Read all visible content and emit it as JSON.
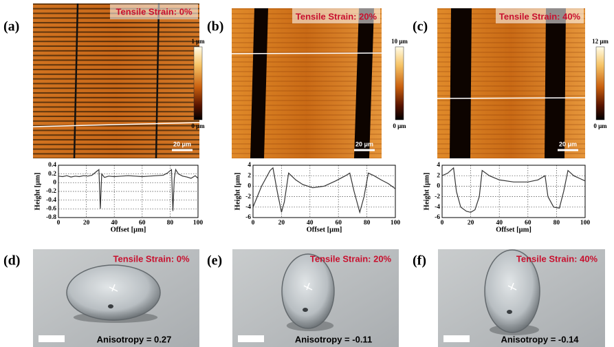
{
  "chart_data": [
    {
      "type": "line",
      "xlabel": "Offset [μm]",
      "ylabel": "Height [μm]",
      "x": [
        0,
        3,
        6,
        9,
        12,
        15,
        18,
        21,
        24,
        27,
        29,
        30,
        31,
        33,
        36,
        40,
        45,
        50,
        55,
        60,
        65,
        70,
        75,
        78,
        81,
        82,
        83,
        84,
        86,
        89,
        92,
        95,
        98,
        100
      ],
      "series": [
        {
          "color": "#333333",
          "values": [
            0.15,
            0.14,
            0.16,
            0.13,
            0.15,
            0.14,
            0.16,
            0.15,
            0.17,
            0.25,
            0.3,
            -0.6,
            0.2,
            0.12,
            0.15,
            0.14,
            0.15,
            0.16,
            0.15,
            0.14,
            0.15,
            0.16,
            0.17,
            0.22,
            0.3,
            -0.65,
            0.1,
            0.3,
            0.2,
            0.15,
            0.13,
            0.1,
            0.16,
            0.1
          ]
        }
      ],
      "xlim": [
        0,
        100
      ],
      "ylim": [
        -0.8,
        0.4
      ],
      "xticks": [
        0,
        20,
        40,
        60,
        80,
        100
      ],
      "yticks": [
        -0.8,
        -0.6,
        -0.4,
        -0.2,
        0,
        0.2,
        0.4
      ],
      "grid": true
    },
    {
      "type": "line",
      "xlabel": "Offset [μm]",
      "ylabel": "Height [μm]",
      "x": [
        0,
        3,
        6,
        9,
        12,
        14,
        17,
        20,
        22,
        25,
        30,
        35,
        42,
        50,
        58,
        65,
        68,
        71,
        75,
        78,
        81,
        85,
        90,
        95,
        100
      ],
      "series": [
        {
          "color": "#333333",
          "values": [
            -4,
            -2,
            0,
            1.5,
            3,
            3.5,
            -1,
            -5,
            -3,
            2.5,
            1.2,
            0.3,
            -0.3,
            0,
            1,
            2,
            2.5,
            -1,
            -5,
            -2,
            2.5,
            2,
            1.2,
            0.5,
            -0.5
          ]
        }
      ],
      "xlim": [
        0,
        100
      ],
      "ylim": [
        -6,
        4
      ],
      "xticks": [
        0,
        20,
        40,
        60,
        80,
        100
      ],
      "yticks": [
        -6,
        -4,
        -2,
        0,
        2,
        4
      ],
      "grid": true
    },
    {
      "type": "line",
      "xlabel": "Offset [μm]",
      "ylabel": "Height [μm]",
      "x": [
        0,
        4,
        8,
        10,
        13,
        17,
        20,
        23,
        26,
        28,
        33,
        40,
        50,
        60,
        67,
        72,
        74,
        78,
        82,
        85,
        88,
        92,
        96,
        100
      ],
      "series": [
        {
          "color": "#333333",
          "values": [
            2,
            2.5,
            3.5,
            -1,
            -4,
            -4.8,
            -5,
            -4.5,
            -2,
            3,
            2,
            1.2,
            0.8,
            0.8,
            1.2,
            2,
            -2,
            -4,
            -4.2,
            -1,
            3,
            2,
            1.5,
            1
          ]
        }
      ],
      "xlim": [
        0,
        100
      ],
      "ylim": [
        -6,
        4
      ],
      "xticks": [
        0,
        20,
        40,
        60,
        80,
        100
      ],
      "yticks": [
        -6,
        -4,
        -2,
        0,
        2,
        4
      ],
      "grid": true
    }
  ],
  "afm_images": [
    {
      "label": "(a)",
      "strain": "Tensile Strain: 0%",
      "colorbar_max": "1 μm",
      "colorbar_min": "0 μm",
      "scale_bar": "20 μm"
    },
    {
      "label": "(b)",
      "strain": "Tensile Strain: 20%",
      "colorbar_max": "10 μm",
      "colorbar_min": "0 μm",
      "scale_bar": "20 μm"
    },
    {
      "label": "(c)",
      "strain": "Tensile Strain: 40%",
      "colorbar_max": "12 μm",
      "colorbar_min": "0 μm",
      "scale_bar": "20 μm"
    }
  ],
  "photos": [
    {
      "label": "(d)",
      "strain": "Tensile Strain: 0%",
      "anisotropy": "Anisotropy = 0.27"
    },
    {
      "label": "(e)",
      "strain": "Tensile Strain: 20%",
      "anisotropy": "Anisotropy = -0.11"
    },
    {
      "label": "(f)",
      "strain": "Tensile Strain: 40%",
      "anisotropy": "Anisotropy = -0.14"
    }
  ]
}
